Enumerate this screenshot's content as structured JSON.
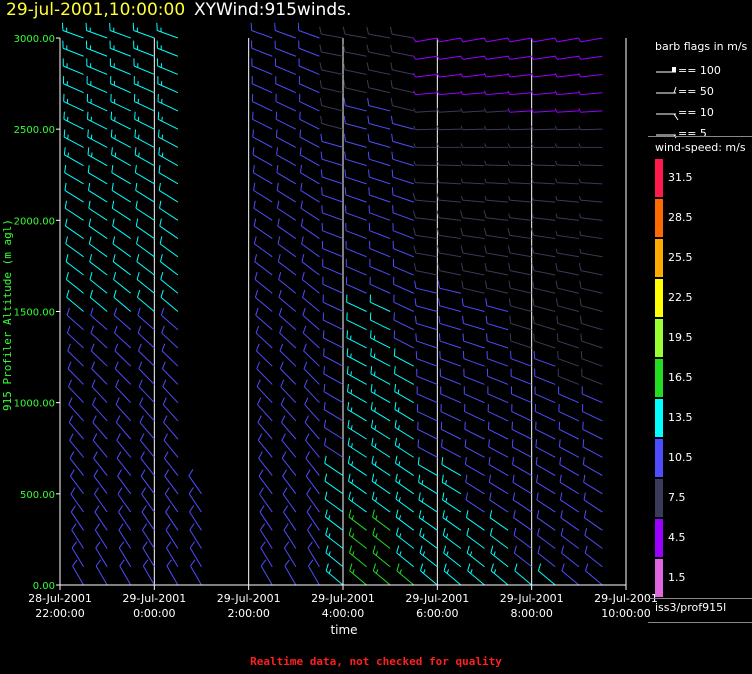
{
  "header": {
    "date": "29-jul-2001,10:00:00",
    "title": "XYWind:915winds."
  },
  "footer": {
    "note": "Realtime data, not checked for quality"
  },
  "legend": {
    "barb_title": "barb flags in m/s",
    "barb_items": [
      "== 100",
      "== 50",
      "== 10",
      "== 5"
    ],
    "speed_title": "wind-speed: m/s",
    "speed_bins": [
      {
        "label": "31.5",
        "color": "#ff1a4d"
      },
      {
        "label": "28.5",
        "color": "#ff6a00"
      },
      {
        "label": "25.5",
        "color": "#ffaa00"
      },
      {
        "label": "22.5",
        "color": "#ffff00"
      },
      {
        "label": "19.5",
        "color": "#99ff33"
      },
      {
        "label": "16.5",
        "color": "#22dd22"
      },
      {
        "label": "13.5",
        "color": "#00ffff"
      },
      {
        "label": "10.5",
        "color": "#4d4dff"
      },
      {
        "label": "7.5",
        "color": "#3a3a5a"
      },
      {
        "label": "4.5",
        "color": "#9900ff"
      },
      {
        "label": "1.5",
        "color": "#e066e0"
      }
    ],
    "source": "iss3/prof915l"
  },
  "chart_data": {
    "type": "scatter",
    "subtype": "wind-barb time-height",
    "ylabel": "915 Profiler Altitude (m agl)",
    "xlabel": "time",
    "ylim": [
      0,
      3000
    ],
    "yticks": [
      "0.00",
      "500.00",
      "1000.00",
      "1500.00",
      "2000.00",
      "2500.00",
      "3000.00"
    ],
    "xticks": [
      {
        "line1": "28-Jul-2001",
        "line2": "22:00:00"
      },
      {
        "line1": "29-Jul-2001",
        "line2": "0:00:00"
      },
      {
        "line1": "29-Jul-2001",
        "line2": "2:00:00"
      },
      {
        "line1": "29-Jul-2001",
        "line2": "4:00:00"
      },
      {
        "line1": "29-Jul-2001",
        "line2": "6:00:00"
      },
      {
        "line1": "29-Jul-2001",
        "line2": "8:00:00"
      },
      {
        "line1": "29-Jul-2001",
        "line2": "10:00:00"
      }
    ],
    "xlim_hours": [
      -2,
      10
    ],
    "vertical_gridlines_hours": [
      0,
      2,
      4,
      6,
      8,
      10
    ],
    "grid": true,
    "legend_position": "right",
    "barb_profiles": [
      {
        "t": -1.5,
        "alt_min": 0,
        "alt_max": 3000,
        "spd_low": 11,
        "spd_high": 13,
        "dir_low": 330,
        "dir_high": 290
      },
      {
        "t": -1.0,
        "alt_min": 0,
        "alt_max": 3000,
        "spd_low": 11,
        "spd_high": 13,
        "dir_low": 330,
        "dir_high": 290
      },
      {
        "t": -0.5,
        "alt_min": 0,
        "alt_max": 3000,
        "spd_low": 11,
        "spd_high": 13,
        "dir_low": 330,
        "dir_high": 290
      },
      {
        "t": 0.0,
        "alt_min": 0,
        "alt_max": 3000,
        "spd_low": 11,
        "spd_high": 13,
        "dir_low": 330,
        "dir_high": 290
      },
      {
        "t": 0.5,
        "alt_min": 0,
        "alt_max": 3000,
        "spd_low": 11,
        "spd_high": 13,
        "dir_low": 330,
        "dir_high": 290
      },
      {
        "t": 1.0,
        "alt_min": 0,
        "alt_max": 500,
        "spd_low": 10,
        "spd_high": 11,
        "dir_low": 330,
        "dir_high": 300
      },
      {
        "t": 2.5,
        "alt_min": 0,
        "alt_max": 3000,
        "spd_low": 9,
        "spd_high": 10,
        "dir_low": 330,
        "dir_high": 290
      },
      {
        "t": 3.0,
        "alt_min": 0,
        "alt_max": 3000,
        "spd_low": 9,
        "spd_high": 10,
        "dir_low": 330,
        "dir_high": 290
      },
      {
        "t": 3.5,
        "alt_min": 0,
        "alt_max": 3000,
        "spd_low": 9,
        "spd_high": 10,
        "dir_low": 330,
        "dir_high": 290
      },
      {
        "t": 4.0,
        "alt_min": 0,
        "alt_max": 3000,
        "spd_low": 13,
        "spd_high": 8,
        "dir_low": 310,
        "dir_high": 280
      },
      {
        "t": 4.5,
        "alt_min": 0,
        "alt_max": 3000,
        "spd_low": 16,
        "spd_high": 8,
        "dir_low": 310,
        "dir_high": 280
      },
      {
        "t": 5.0,
        "alt_min": 0,
        "alt_max": 3000,
        "spd_low": 16,
        "spd_high": 8,
        "dir_low": 310,
        "dir_high": 280
      },
      {
        "t": 5.5,
        "alt_min": 0,
        "alt_max": 3000,
        "spd_low": 15,
        "spd_high": 8,
        "dir_low": 310,
        "dir_high": 280
      },
      {
        "t": 6.0,
        "alt_min": 0,
        "alt_max": 3000,
        "spd_low": 14,
        "spd_high": 5,
        "dir_low": 310,
        "dir_high": 260
      },
      {
        "t": 6.5,
        "alt_min": 0,
        "alt_max": 3000,
        "spd_low": 14,
        "spd_high": 5,
        "dir_low": 310,
        "dir_high": 260
      },
      {
        "t": 7.0,
        "alt_min": 0,
        "alt_max": 3000,
        "spd_low": 13,
        "spd_high": 5,
        "dir_low": 310,
        "dir_high": 260
      },
      {
        "t": 7.5,
        "alt_min": 0,
        "alt_max": 3000,
        "spd_low": 13,
        "spd_high": 5,
        "dir_low": 310,
        "dir_high": 260
      },
      {
        "t": 8.0,
        "alt_min": 0,
        "alt_max": 3000,
        "spd_low": 12,
        "spd_high": 5,
        "dir_low": 310,
        "dir_high": 260
      },
      {
        "t": 8.5,
        "alt_min": 0,
        "alt_max": 3000,
        "spd_low": 12,
        "spd_high": 5,
        "dir_low": 310,
        "dir_high": 260
      },
      {
        "t": 9.0,
        "alt_min": 0,
        "alt_max": 3000,
        "spd_low": 11,
        "spd_high": 5,
        "dir_low": 310,
        "dir_high": 260
      },
      {
        "t": 9.5,
        "alt_min": 0,
        "alt_max": 3000,
        "spd_low": 11,
        "spd_high": 5,
        "dir_low": 310,
        "dir_high": 260
      }
    ]
  }
}
